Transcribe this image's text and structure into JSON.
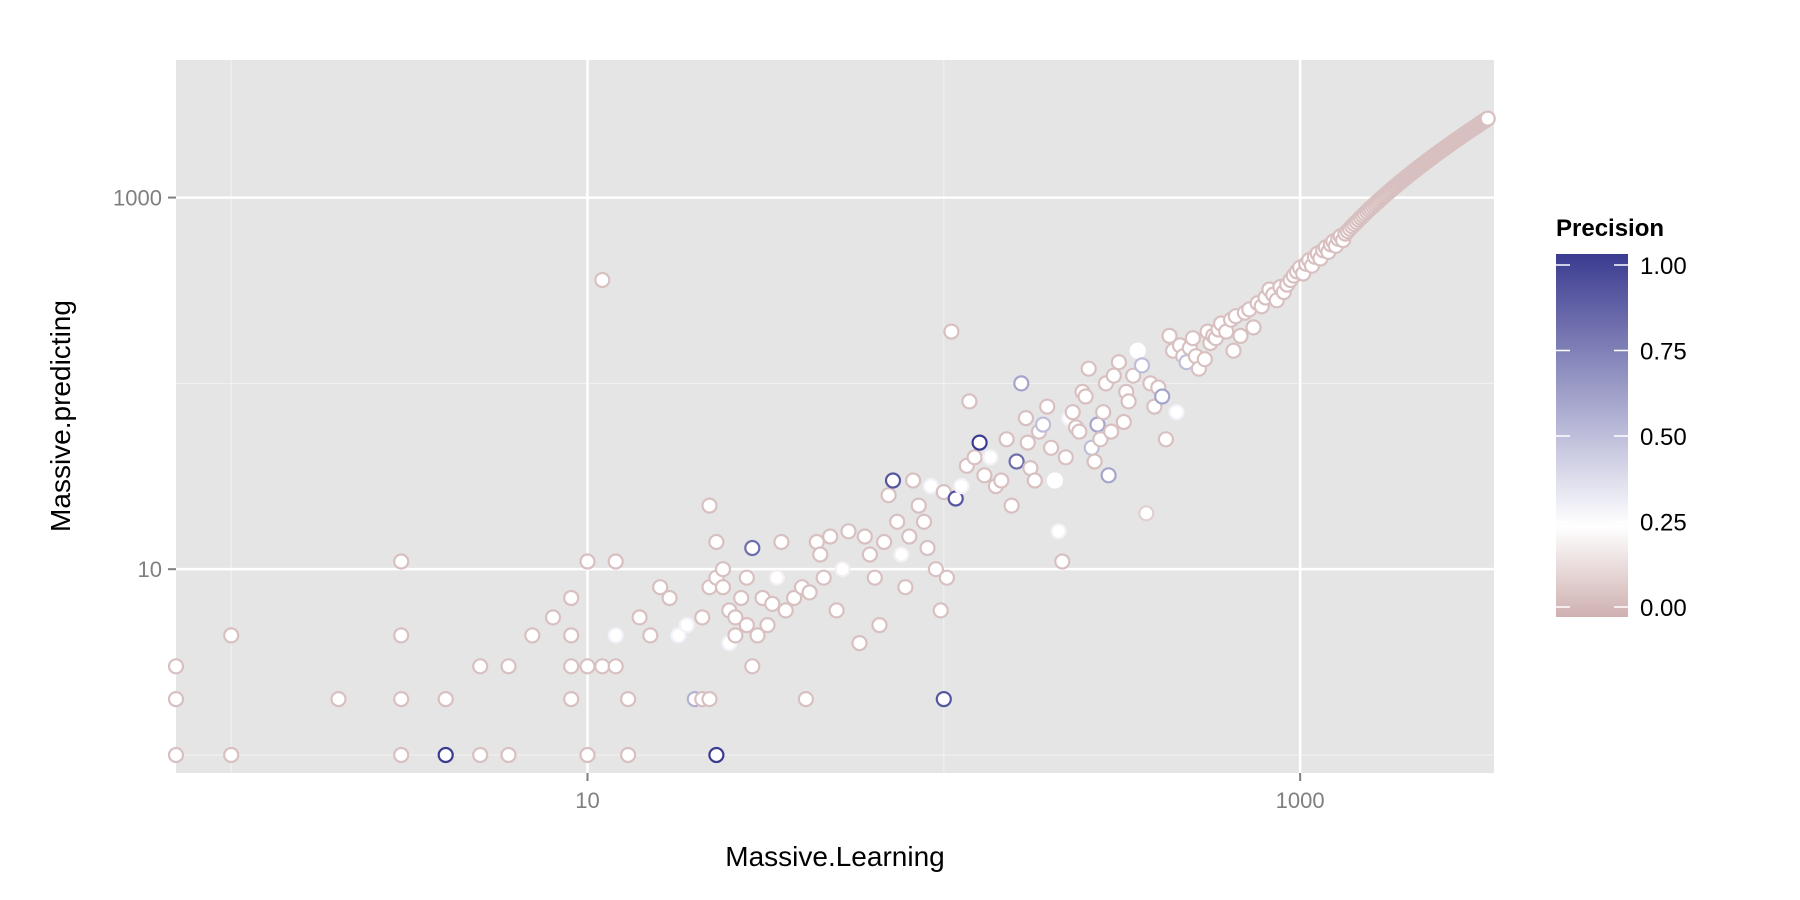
{
  "chart_data": {
    "type": "scatter",
    "xlabel": "Massive.Learning",
    "ylabel": "Massive.predicting",
    "x_scale": "log10",
    "y_scale": "log10",
    "xlim": [
      0.7,
      3500
    ],
    "ylim": [
      0.8,
      5500
    ],
    "x_ticks": [
      10,
      1000
    ],
    "x_tick_labels": [
      "10",
      "1000"
    ],
    "y_ticks": [
      10,
      1000
    ],
    "y_tick_labels": [
      "10",
      "1000"
    ],
    "grid": true,
    "legend": {
      "title": "Precision",
      "position": "right",
      "ticks": [
        1.0,
        0.75,
        0.5,
        0.25,
        0.0
      ],
      "tick_labels": [
        "1.00",
        "0.75",
        "0.50",
        "0.25",
        "0.00"
      ]
    },
    "colors": {
      "panel_bg": "#e5e5e5",
      "grid_major": "#ffffff",
      "grid_minor": "#f2f2f2",
      "high": "#3b3b91",
      "mid": "#ffffff",
      "low": "#cfb0b0"
    },
    "points": [
      [
        0.7,
        1,
        0.05
      ],
      [
        0.7,
        2,
        0.05
      ],
      [
        0.7,
        3,
        0.05
      ],
      [
        1,
        1,
        0.05
      ],
      [
        1,
        4.4,
        0.05
      ],
      [
        2,
        2,
        0.05
      ],
      [
        3,
        1,
        0.05
      ],
      [
        3,
        2,
        0.05
      ],
      [
        3,
        4.4,
        0.05
      ],
      [
        3,
        11,
        0.05
      ],
      [
        4,
        1,
        1.0
      ],
      [
        4,
        2,
        0.05
      ],
      [
        5,
        1,
        0.05
      ],
      [
        5,
        3,
        0.05
      ],
      [
        6,
        1,
        0.05
      ],
      [
        6,
        3,
        0.05
      ],
      [
        7,
        4.4,
        0.05
      ],
      [
        8,
        5.5,
        0.05
      ],
      [
        9,
        2,
        0.05
      ],
      [
        9,
        3,
        0.05
      ],
      [
        9,
        4.4,
        0.05
      ],
      [
        9,
        7,
        0.05
      ],
      [
        10,
        1,
        0.05
      ],
      [
        10,
        3,
        0.05
      ],
      [
        10,
        11,
        0.05
      ],
      [
        11,
        3,
        0.05
      ],
      [
        12,
        4.4,
        0.3
      ],
      [
        12,
        3,
        0.05
      ],
      [
        12,
        11,
        0.05
      ],
      [
        11,
        360,
        0.05
      ],
      [
        13,
        2,
        0.05
      ],
      [
        13,
        1,
        0.05
      ],
      [
        14,
        5.5,
        0.05
      ],
      [
        15,
        4.4,
        0.05
      ],
      [
        16,
        8,
        0.05
      ],
      [
        17,
        7,
        0.05
      ],
      [
        18,
        4.4,
        0.3
      ],
      [
        19,
        5,
        0.3
      ],
      [
        20,
        2,
        0.55
      ],
      [
        21,
        2,
        0.05
      ],
      [
        21,
        5.5,
        0.05
      ],
      [
        22,
        2,
        0.05
      ],
      [
        22,
        8,
        0.05
      ],
      [
        22,
        22,
        0.05
      ],
      [
        23,
        1,
        1.0
      ],
      [
        23,
        9,
        0.05
      ],
      [
        23,
        14,
        0.05
      ],
      [
        24,
        10,
        0.05
      ],
      [
        24,
        8,
        0.05
      ],
      [
        25,
        4,
        0.3
      ],
      [
        25,
        6,
        0.05
      ],
      [
        26,
        5.5,
        0.05
      ],
      [
        26,
        4.4,
        0.05
      ],
      [
        27,
        7,
        0.05
      ],
      [
        28,
        5,
        0.05
      ],
      [
        28,
        9,
        0.05
      ],
      [
        29,
        3,
        0.05
      ],
      [
        29,
        13,
        0.8
      ],
      [
        30,
        4.4,
        0.05
      ],
      [
        31,
        7,
        0.05
      ],
      [
        32,
        5,
        0.05
      ],
      [
        33,
        6.5,
        0.05
      ],
      [
        34,
        9,
        0.2
      ],
      [
        35,
        14,
        0.05
      ],
      [
        36,
        6,
        0.05
      ],
      [
        38,
        7,
        0.05
      ],
      [
        40,
        8,
        0.05
      ],
      [
        41,
        2,
        0.05
      ],
      [
        42,
        7.5,
        0.05
      ],
      [
        44,
        14,
        0.05
      ],
      [
        45,
        12,
        0.05
      ],
      [
        46,
        9,
        0.05
      ],
      [
        48,
        15,
        0.05
      ],
      [
        50,
        6,
        0.05
      ],
      [
        52,
        10,
        0.2
      ],
      [
        54,
        16,
        0.05
      ],
      [
        58,
        4,
        0.05
      ],
      [
        60,
        15,
        0.05
      ],
      [
        62,
        12,
        0.05
      ],
      [
        64,
        9,
        0.05
      ],
      [
        66,
        5,
        0.05
      ],
      [
        68,
        14,
        0.05
      ],
      [
        70,
        25,
        0.05
      ],
      [
        72,
        30,
        0.9
      ],
      [
        74,
        18,
        0.05
      ],
      [
        76,
        12,
        0.2
      ],
      [
        78,
        8,
        0.05
      ],
      [
        80,
        15,
        0.05
      ],
      [
        82,
        30,
        0.05
      ],
      [
        85,
        22,
        0.05
      ],
      [
        88,
        18,
        0.05
      ],
      [
        90,
        13,
        0.05
      ],
      [
        92,
        28,
        0.3
      ],
      [
        95,
        10,
        0.05
      ],
      [
        98,
        6,
        0.05
      ],
      [
        100,
        2,
        0.9
      ],
      [
        100,
        26,
        0.05
      ],
      [
        102,
        9,
        0.05
      ],
      [
        105,
        190,
        0.05
      ],
      [
        108,
        24,
        0.9
      ],
      [
        112,
        28,
        0.3
      ],
      [
        116,
        36,
        0.05
      ],
      [
        118,
        80,
        0.05
      ],
      [
        122,
        40,
        0.05
      ],
      [
        126,
        48,
        1.0
      ],
      [
        130,
        32,
        0.05
      ],
      [
        135,
        40,
        0.3
      ],
      [
        140,
        28,
        0.05
      ],
      [
        145,
        30,
        0.05
      ],
      [
        150,
        50,
        0.05
      ],
      [
        155,
        22,
        0.05
      ],
      [
        160,
        38,
        0.8
      ],
      [
        165,
        100,
        0.6
      ],
      [
        170,
        65,
        0.05
      ],
      [
        172,
        48,
        0.05
      ],
      [
        175,
        35,
        0.05
      ],
      [
        180,
        30,
        0.05
      ],
      [
        185,
        55,
        0.05
      ],
      [
        190,
        60,
        0.5
      ],
      [
        195,
        75,
        0.05
      ],
      [
        200,
        45,
        0.05
      ],
      [
        205,
        30,
        0.25
      ],
      [
        210,
        16,
        0.3
      ],
      [
        215,
        11,
        0.05
      ],
      [
        220,
        40,
        0.05
      ],
      [
        225,
        65,
        0.3
      ],
      [
        230,
        70,
        0.05
      ],
      [
        235,
        58,
        0.05
      ],
      [
        240,
        55,
        0.05
      ],
      [
        245,
        90,
        0.05
      ],
      [
        250,
        85,
        0.05
      ],
      [
        255,
        120,
        0.05
      ],
      [
        260,
        45,
        0.5
      ],
      [
        265,
        38,
        0.05
      ],
      [
        270,
        60,
        0.6
      ],
      [
        275,
        50,
        0.05
      ],
      [
        280,
        70,
        0.05
      ],
      [
        285,
        100,
        0.05
      ],
      [
        290,
        32,
        0.6
      ],
      [
        295,
        55,
        0.05
      ],
      [
        300,
        110,
        0.05
      ],
      [
        310,
        130,
        0.05
      ],
      [
        320,
        62,
        0.05
      ],
      [
        325,
        90,
        0.05
      ],
      [
        330,
        80,
        0.05
      ],
      [
        340,
        110,
        0.05
      ],
      [
        350,
        150,
        0.25
      ],
      [
        360,
        125,
        0.5
      ],
      [
        370,
        20,
        0.1
      ],
      [
        380,
        100,
        0.05
      ],
      [
        390,
        75,
        0.05
      ],
      [
        400,
        95,
        0.05
      ],
      [
        410,
        85,
        0.6
      ],
      [
        420,
        50,
        0.05
      ],
      [
        430,
        180,
        0.05
      ],
      [
        440,
        150,
        0.05
      ],
      [
        450,
        70,
        0.3
      ],
      [
        460,
        160,
        0.05
      ],
      [
        470,
        140,
        0.05
      ],
      [
        480,
        130,
        0.5
      ],
      [
        490,
        155,
        0.05
      ],
      [
        500,
        175,
        0.05
      ],
      [
        510,
        140,
        0.05
      ],
      [
        520,
        120,
        0.05
      ],
      [
        540,
        135,
        0.05
      ],
      [
        550,
        190,
        0.05
      ],
      [
        560,
        165,
        0.05
      ],
      [
        570,
        180,
        0.05
      ],
      [
        580,
        175,
        0.05
      ],
      [
        590,
        195,
        0.05
      ],
      [
        600,
        210,
        0.05
      ],
      [
        620,
        190,
        0.05
      ],
      [
        640,
        220,
        0.05
      ],
      [
        650,
        150,
        0.05
      ],
      [
        660,
        230,
        0.05
      ],
      [
        680,
        180,
        0.05
      ],
      [
        700,
        240,
        0.05
      ],
      [
        720,
        250,
        0.05
      ],
      [
        740,
        200,
        0.05
      ],
      [
        760,
        270,
        0.05
      ],
      [
        780,
        260,
        0.05
      ],
      [
        800,
        290,
        0.05
      ],
      [
        820,
        320,
        0.05
      ],
      [
        840,
        300,
        0.05
      ],
      [
        860,
        280,
        0.05
      ],
      [
        880,
        330,
        0.05
      ],
      [
        900,
        310,
        0.05
      ],
      [
        920,
        340,
        0.05
      ],
      [
        940,
        360,
        0.05
      ],
      [
        960,
        380,
        0.05
      ],
      [
        980,
        400,
        0.05
      ],
      [
        1000,
        420,
        0.05
      ],
      [
        1020,
        390,
        0.05
      ],
      [
        1040,
        440,
        0.05
      ],
      [
        1060,
        460,
        0.05
      ],
      [
        1080,
        430,
        0.05
      ],
      [
        1100,
        480,
        0.05
      ],
      [
        1120,
        500,
        0.05
      ],
      [
        1140,
        470,
        0.05
      ],
      [
        1160,
        520,
        0.05
      ],
      [
        1180,
        540,
        0.05
      ],
      [
        1200,
        510,
        0.05
      ],
      [
        1220,
        560,
        0.05
      ],
      [
        1240,
        580,
        0.05
      ],
      [
        1260,
        550,
        0.05
      ],
      [
        1280,
        600,
        0.05
      ],
      [
        1300,
        620,
        0.05
      ],
      [
        1320,
        590,
        0.05
      ],
      [
        1340,
        640,
        0.05
      ],
      [
        1360,
        660,
        0.05
      ],
      [
        1380,
        680,
        0.05
      ],
      [
        1400,
        700,
        0.05
      ],
      [
        1420,
        720,
        0.05
      ],
      [
        1440,
        740,
        0.05
      ],
      [
        1460,
        760,
        0.05
      ],
      [
        1480,
        780,
        0.05
      ],
      [
        1500,
        800,
        0.05
      ],
      [
        1520,
        820,
        0.05
      ],
      [
        1540,
        840,
        0.05
      ],
      [
        1560,
        860,
        0.05
      ],
      [
        1580,
        880,
        0.05
      ],
      [
        1600,
        900,
        0.05
      ],
      [
        1620,
        920,
        0.05
      ],
      [
        1640,
        940,
        0.05
      ],
      [
        1660,
        960,
        0.05
      ],
      [
        1680,
        980,
        0.05
      ],
      [
        1700,
        1000,
        0.05
      ],
      [
        1720,
        1020,
        0.05
      ],
      [
        1740,
        1040,
        0.05
      ],
      [
        1760,
        1060,
        0.05
      ],
      [
        1780,
        1080,
        0.05
      ],
      [
        1800,
        1100,
        0.05
      ],
      [
        1820,
        1120,
        0.05
      ],
      [
        1840,
        1140,
        0.05
      ],
      [
        1860,
        1160,
        0.05
      ],
      [
        1880,
        1180,
        0.05
      ],
      [
        1900,
        1200,
        0.05
      ],
      [
        1920,
        1220,
        0.05
      ],
      [
        1940,
        1240,
        0.05
      ],
      [
        1960,
        1260,
        0.05
      ],
      [
        1980,
        1280,
        0.05
      ],
      [
        2000,
        1300,
        0.05
      ],
      [
        2020,
        1320,
        0.05
      ],
      [
        2040,
        1340,
        0.05
      ],
      [
        2060,
        1360,
        0.05
      ],
      [
        2080,
        1380,
        0.05
      ],
      [
        2100,
        1400,
        0.05
      ],
      [
        2120,
        1420,
        0.05
      ],
      [
        2140,
        1440,
        0.05
      ],
      [
        2160,
        1460,
        0.05
      ],
      [
        2180,
        1480,
        0.05
      ],
      [
        2200,
        1500,
        0.05
      ],
      [
        2220,
        1520,
        0.05
      ],
      [
        2240,
        1540,
        0.05
      ],
      [
        2260,
        1560,
        0.05
      ],
      [
        2280,
        1580,
        0.05
      ],
      [
        2300,
        1600,
        0.05
      ],
      [
        2320,
        1620,
        0.05
      ],
      [
        2340,
        1640,
        0.05
      ],
      [
        2360,
        1660,
        0.05
      ],
      [
        2380,
        1680,
        0.05
      ],
      [
        2400,
        1700,
        0.05
      ],
      [
        2420,
        1720,
        0.05
      ],
      [
        2440,
        1740,
        0.05
      ],
      [
        2460,
        1760,
        0.05
      ],
      [
        2480,
        1780,
        0.05
      ],
      [
        2500,
        1800,
        0.05
      ],
      [
        2520,
        1820,
        0.05
      ],
      [
        2540,
        1840,
        0.05
      ],
      [
        2560,
        1860,
        0.05
      ],
      [
        2580,
        1880,
        0.05
      ],
      [
        2600,
        1900,
        0.05
      ],
      [
        2620,
        1920,
        0.05
      ],
      [
        2640,
        1940,
        0.05
      ],
      [
        2660,
        1960,
        0.05
      ],
      [
        2680,
        1980,
        0.05
      ],
      [
        2700,
        2000,
        0.05
      ],
      [
        2720,
        2020,
        0.05
      ],
      [
        2740,
        2040,
        0.05
      ],
      [
        2760,
        2060,
        0.05
      ],
      [
        2780,
        2080,
        0.05
      ],
      [
        2800,
        2100,
        0.05
      ],
      [
        2820,
        2120,
        0.05
      ],
      [
        2840,
        2140,
        0.05
      ],
      [
        2860,
        2160,
        0.05
      ],
      [
        2880,
        2180,
        0.05
      ],
      [
        2900,
        2200,
        0.05
      ],
      [
        2920,
        2220,
        0.05
      ],
      [
        2940,
        2240,
        0.05
      ],
      [
        2960,
        2260,
        0.05
      ],
      [
        2980,
        2280,
        0.05
      ],
      [
        3000,
        2300,
        0.05
      ],
      [
        3020,
        2320,
        0.05
      ],
      [
        3040,
        2340,
        0.05
      ],
      [
        3060,
        2360,
        0.05
      ],
      [
        3080,
        2380,
        0.05
      ],
      [
        3100,
        2400,
        0.05
      ],
      [
        3120,
        2420,
        0.05
      ],
      [
        3140,
        2440,
        0.05
      ],
      [
        3160,
        2460,
        0.05
      ],
      [
        3180,
        2480,
        0.05
      ],
      [
        3200,
        2500,
        0.05
      ],
      [
        3220,
        2520,
        0.05
      ],
      [
        3240,
        2540,
        0.05
      ],
      [
        3260,
        2560,
        0.05
      ],
      [
        3280,
        2580,
        0.05
      ],
      [
        3300,
        2600,
        0.05
      ],
      [
        3320,
        2620,
        0.05
      ],
      [
        3340,
        2640,
        0.05
      ],
      [
        3360,
        2660,
        0.05
      ]
    ]
  }
}
